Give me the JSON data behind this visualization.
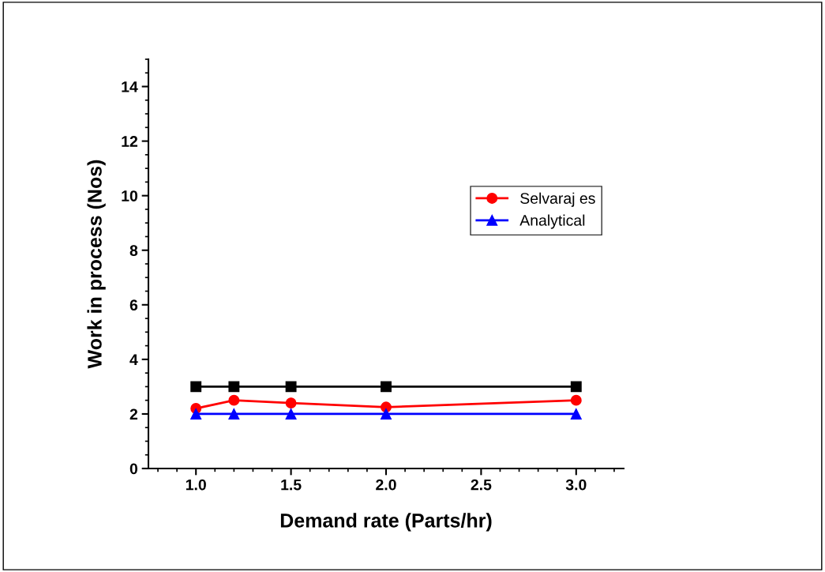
{
  "chart_data": {
    "type": "line",
    "xlabel": "Demand rate (Parts/hr)",
    "ylabel": "Work in process (Nos)",
    "x": [
      1.0,
      1.2,
      1.5,
      2.0,
      3.0
    ],
    "series": [
      {
        "color": "#000000",
        "marker": "square",
        "values": [
          3,
          3,
          3,
          3,
          3
        ]
      },
      {
        "name": "Selvaraj es",
        "color": "#ff0000",
        "marker": "circle",
        "values": [
          2.2,
          2.5,
          2.4,
          2.25,
          2.5
        ]
      },
      {
        "name": "Analytical",
        "color": "#0000ff",
        "marker": "triangle",
        "values": [
          2,
          2,
          2,
          2,
          2
        ]
      }
    ],
    "xlim": [
      0.75,
      3.25
    ],
    "xticks": [
      {
        "value": 1.0,
        "label": "1.0"
      },
      {
        "value": 1.5,
        "label": "1.5"
      },
      {
        "value": 2.0,
        "label": "2.0"
      },
      {
        "value": 2.5,
        "label": "2.5"
      },
      {
        "value": 3.0,
        "label": "3.0"
      }
    ],
    "ylim": [
      0,
      15
    ],
    "yticks": [
      0,
      2,
      4,
      6,
      8,
      10,
      12,
      14
    ],
    "grid": false,
    "legend": "right",
    "line_style": "solid"
  }
}
